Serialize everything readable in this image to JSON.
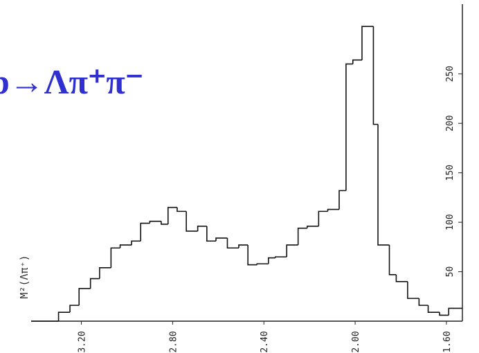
{
  "chart_data": {
    "type": "histogram",
    "annotation": "b→Λπ⁺π⁻",
    "y_label": "M²(Λπ⁺)",
    "bins": [
      3.42,
      3.3,
      3.25,
      3.21,
      3.16,
      3.12,
      3.07,
      3.03,
      2.98,
      2.94,
      2.9,
      2.85,
      2.82,
      2.78,
      2.74,
      2.69,
      2.65,
      2.61,
      2.56,
      2.51,
      2.47,
      2.43,
      2.38,
      2.35,
      2.3,
      2.25,
      2.21,
      2.16,
      2.12,
      2.07,
      2.04,
      2.01,
      1.97,
      1.92,
      1.9,
      1.85,
      1.82,
      1.77,
      1.72,
      1.68,
      1.63,
      1.59,
      1.53
    ],
    "values": [
      0,
      9,
      16,
      33,
      43,
      54,
      74,
      77,
      81,
      99,
      101,
      98,
      115,
      111,
      91,
      96,
      81,
      84,
      74,
      77,
      57,
      58,
      64,
      65,
      77,
      94,
      96,
      111,
      113,
      132,
      260,
      264,
      298,
      199,
      77,
      47,
      40,
      23,
      16,
      9,
      6,
      13
    ],
    "color": "#111111",
    "xlim": [
      3.42,
      1.53
    ],
    "xticks": [
      {
        "value": 3.2,
        "label": "3.20"
      },
      {
        "value": 2.8,
        "label": "2.80"
      },
      {
        "value": 2.4,
        "label": "2.40"
      },
      {
        "value": 2.0,
        "label": "2.00"
      },
      {
        "value": 1.6,
        "label": "1.60"
      }
    ],
    "ylim": [
      0,
      310
    ],
    "yticks": [
      50,
      100,
      150,
      200,
      250
    ],
    "y_axis_side": "right"
  }
}
